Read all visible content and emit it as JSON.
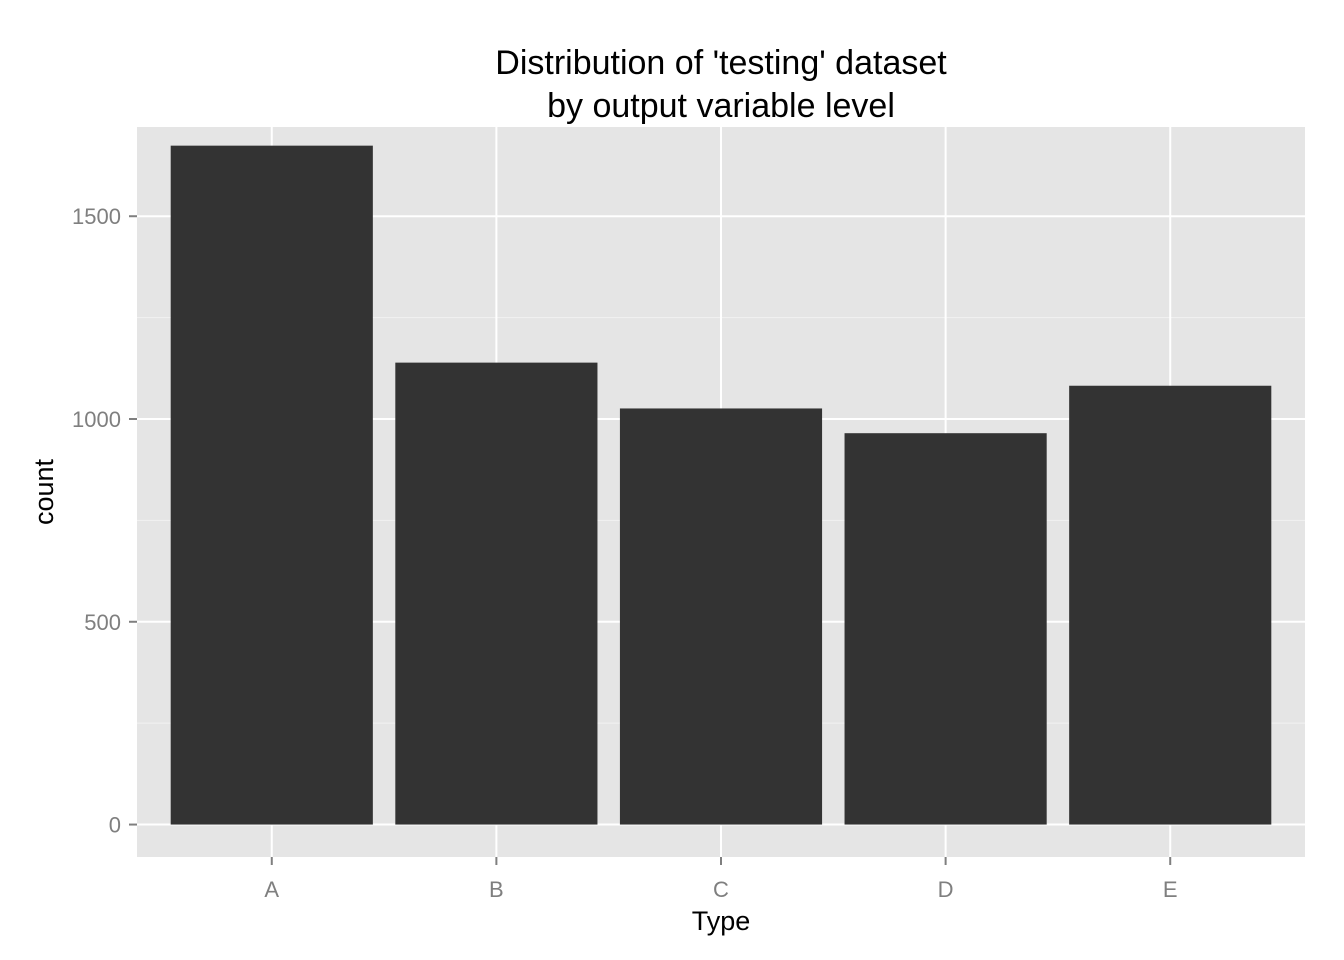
{
  "chart_data": {
    "type": "bar",
    "title_lines": [
      "Distribution of 'testing' dataset",
      "by output variable level"
    ],
    "xlabel": "Type",
    "ylabel": "count",
    "categories": [
      "A",
      "B",
      "C",
      "D",
      "E"
    ],
    "values": [
      1674,
      1139,
      1026,
      965,
      1082
    ],
    "ylim": [
      -80,
      1720
    ],
    "yticks": [
      0,
      500,
      1000,
      1500
    ],
    "ytick_labels": [
      "0",
      "500",
      "1000",
      "1500"
    ],
    "grid": true,
    "legend": "none",
    "colors": {
      "panel_background": "#e5e5e5",
      "grid_major": "#ffffff",
      "grid_minor": "#f2f2f2",
      "bar_fill": "#333333",
      "tick_text": "#7f7f7f",
      "tick_mark": "#7f7f7f"
    }
  }
}
